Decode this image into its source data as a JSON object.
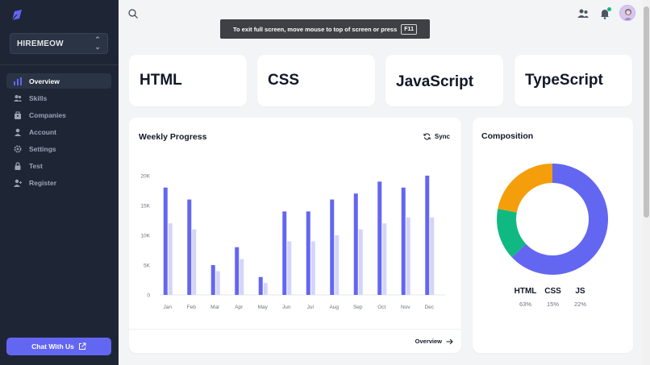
{
  "sidebar": {
    "workspace": "HIREMEOW",
    "items": [
      {
        "label": "Overview",
        "icon": "bar-chart-icon",
        "active": true
      },
      {
        "label": "Skills",
        "icon": "users-icon",
        "active": false
      },
      {
        "label": "Companies",
        "icon": "building-icon",
        "active": false
      },
      {
        "label": "Account",
        "icon": "user-icon",
        "active": false
      },
      {
        "label": "Settings",
        "icon": "gear-icon",
        "active": false
      },
      {
        "label": "Test",
        "icon": "lock-icon",
        "active": false
      },
      {
        "label": "Register",
        "icon": "user-plus-icon",
        "active": false
      }
    ],
    "chat_button": "Chat With Us"
  },
  "toast": {
    "text": "To exit full screen, move mouse to top of screen or press",
    "key": "F11"
  },
  "lang_cards": [
    "HTML",
    "CSS",
    "JavaScript",
    "TypeScript"
  ],
  "weekly": {
    "title": "Weekly Progress",
    "sync_label": "Sync",
    "footer_link": "Overview"
  },
  "composition": {
    "title": "Composition",
    "legend": [
      {
        "label": "HTML",
        "pct": "63%"
      },
      {
        "label": "CSS",
        "pct": "15%"
      },
      {
        "label": "JS",
        "pct": "22%"
      }
    ]
  },
  "colors": {
    "accent": "#6366f1",
    "accent_light": "#d4d4fb",
    "sidebar_bg": "#1e2636",
    "html": "#6366f1",
    "css": "#10b981",
    "js": "#f59e0b"
  },
  "chart_data": [
    {
      "type": "bar",
      "categories": [
        "Jan",
        "Feb",
        "Mar",
        "Apr",
        "May",
        "Jun",
        "Jul",
        "Aug",
        "Sep",
        "Oct",
        "Nov",
        "Dec"
      ],
      "series": [
        {
          "values": [
            18000,
            16000,
            5000,
            8000,
            3000,
            14000,
            14000,
            16000,
            17000,
            19000,
            18000,
            20000
          ]
        },
        {
          "values": [
            12000,
            11000,
            4000,
            6000,
            2000,
            9000,
            9000,
            10000,
            11000,
            12000,
            13000,
            13000
          ]
        }
      ],
      "yticks": [
        "0",
        "5K",
        "10K",
        "15K",
        "20K"
      ],
      "ylim": [
        0,
        20000
      ],
      "grid": false
    },
    {
      "type": "pie",
      "labels": [
        "HTML",
        "CSS",
        "JS"
      ],
      "values": [
        63,
        15,
        22
      ]
    }
  ]
}
